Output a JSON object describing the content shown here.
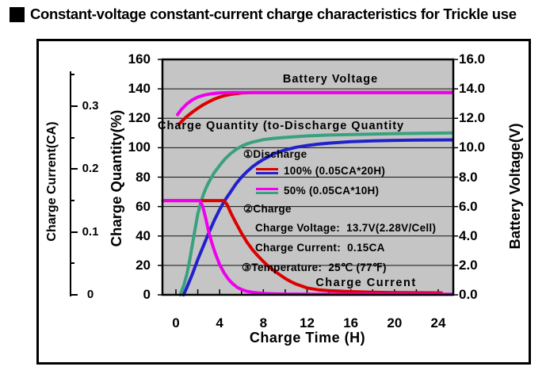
{
  "title": "Constant-voltage constant-current charge characteristics for Trickle use",
  "chart_data": {
    "type": "line",
    "title": "Constant-voltage constant-current charge characteristics for Trickle use",
    "layout": {
      "plot_background": "#c5c5c5",
      "grid": "on",
      "legend_position": "inside-center",
      "frame": "black-box"
    },
    "x_axis": {
      "label": "Charge Time (H)",
      "ticks": [
        "0",
        "4",
        "8",
        "12",
        "16",
        "20",
        "24"
      ],
      "range": [
        0,
        24
      ],
      "minor_tick_step_h": 2
    },
    "y_axis_quantity": {
      "label": "Charge Quantity(%)",
      "ticks": [
        "160",
        "140",
        "120",
        "100",
        "80",
        "60",
        "40",
        "20",
        "0"
      ],
      "range": [
        0,
        160
      ]
    },
    "y_axis_voltage": {
      "label": "Battery Voltage(V)",
      "ticks": [
        "16.0",
        "14.0",
        "12.0",
        "10.0",
        "8.0",
        "6.0",
        "4.0",
        "2.0",
        "0.0"
      ],
      "range": [
        0,
        16
      ]
    },
    "y_axis_current": {
      "label": "Charge Current(CA)",
      "ticks": [
        "0.3",
        "0.2",
        "0.1",
        "0"
      ],
      "tick_values": [
        0.3,
        0.2,
        0.1,
        0
      ],
      "minor_tick_values": [
        0.35,
        0.25,
        0.15,
        0.05
      ],
      "range": [
        0,
        0.35
      ]
    },
    "annotations": {
      "battery_voltage": "Battery Voltage",
      "charge_quantity": "Charge Quantity (to-Discharge Quantity",
      "charge_current": "Charge Current"
    },
    "legend": {
      "discharge_heading": "①Discharge",
      "items": [
        {
          "label": "100% (0.05CA*20H)",
          "colors": [
            "#dd0000",
            "#2121cc"
          ]
        },
        {
          "label": "50% (0.05CA*10H)",
          "colors": [
            "#ee00ee",
            "#3aa17e"
          ]
        }
      ],
      "charge_heading": "②Charge",
      "charge_voltage": "Charge Voltage:  13.7V(2.28V/Cell)",
      "charge_current": "Charge Current:  0.15CA",
      "temperature": "③Temperature:  25℃ (77℉)"
    },
    "series": [
      {
        "id": "battery-voltage-100",
        "name": "Battery Voltage (100% discharge)",
        "axis": "voltage",
        "unit": "V",
        "color": "#dd0000",
        "points": [
          [
            0.3,
            11.62
          ],
          [
            0.75,
            11.95
          ],
          [
            1,
            12.12
          ],
          [
            1.5,
            12.42
          ],
          [
            2,
            12.68
          ],
          [
            2.5,
            12.92
          ],
          [
            3,
            13.12
          ],
          [
            3.5,
            13.3
          ],
          [
            4,
            13.44
          ],
          [
            4.5,
            13.55
          ],
          [
            5,
            13.63
          ],
          [
            5.5,
            13.68
          ],
          [
            6,
            13.72
          ],
          [
            6.5,
            13.74
          ],
          [
            7,
            13.75
          ],
          [
            25.3,
            13.75
          ]
        ]
      },
      {
        "id": "battery-voltage-50",
        "name": "Battery Voltage (50% discharge)",
        "axis": "voltage",
        "unit": "V",
        "color": "#ee00ee",
        "points": [
          [
            0.15,
            12.25
          ],
          [
            0.5,
            12.6
          ],
          [
            1,
            12.98
          ],
          [
            1.5,
            13.25
          ],
          [
            2,
            13.44
          ],
          [
            2.5,
            13.56
          ],
          [
            3,
            13.64
          ],
          [
            3.5,
            13.69
          ],
          [
            4,
            13.72
          ],
          [
            4.5,
            13.74
          ],
          [
            5,
            13.75
          ],
          [
            25.3,
            13.75
          ]
        ]
      },
      {
        "id": "charge-quantity-100",
        "name": "Charge Quantity (100% discharge)",
        "axis": "quantity",
        "unit": "%",
        "color": "#2121cc",
        "points": [
          [
            0.7,
            0
          ],
          [
            1,
            5
          ],
          [
            1.5,
            14
          ],
          [
            2,
            24
          ],
          [
            2.5,
            33
          ],
          [
            3,
            42
          ],
          [
            3.5,
            50.5
          ],
          [
            4,
            58
          ],
          [
            4.5,
            64.5
          ],
          [
            5,
            70
          ],
          [
            5.5,
            75.5
          ],
          [
            6,
            80
          ],
          [
            6.5,
            83.7
          ],
          [
            7,
            87
          ],
          [
            7.5,
            89.7
          ],
          [
            8,
            92
          ],
          [
            9,
            96
          ],
          [
            10,
            98.5
          ],
          [
            11,
            100.3
          ],
          [
            12,
            101.5
          ],
          [
            13,
            102.4
          ],
          [
            14,
            103.1
          ],
          [
            16,
            104.1
          ],
          [
            18,
            104.7
          ],
          [
            20,
            105
          ],
          [
            22,
            105.2
          ],
          [
            25.3,
            105.3
          ]
        ]
      },
      {
        "id": "charge-quantity-50",
        "name": "Charge Quantity (50% discharge)",
        "axis": "quantity",
        "unit": "%",
        "color": "#3aa17e",
        "points": [
          [
            0.4,
            0
          ],
          [
            0.75,
            7
          ],
          [
            1,
            14
          ],
          [
            1.25,
            23
          ],
          [
            1.5,
            34
          ],
          [
            1.75,
            44.5
          ],
          [
            2,
            55
          ],
          [
            2.25,
            62
          ],
          [
            2.5,
            68
          ],
          [
            2.75,
            72.5
          ],
          [
            3,
            76.5
          ],
          [
            3.5,
            83
          ],
          [
            4,
            88
          ],
          [
            4.5,
            92.5
          ],
          [
            5,
            96
          ],
          [
            5.5,
            98.8
          ],
          [
            6,
            101
          ],
          [
            6.5,
            102.6
          ],
          [
            7,
            103.8
          ],
          [
            8,
            105.5
          ],
          [
            9,
            106.4
          ],
          [
            10,
            107
          ],
          [
            12,
            108
          ],
          [
            14,
            108.6
          ],
          [
            16,
            109
          ],
          [
            20,
            109.6
          ],
          [
            25.3,
            110
          ]
        ]
      },
      {
        "id": "charge-current-100",
        "name": "Charge Current (100% discharge)",
        "axis": "current",
        "unit": "CA",
        "color": "#dd0000",
        "points": [
          [
            -1.2,
            0.15
          ],
          [
            4.4,
            0.15
          ],
          [
            4.7,
            0.143
          ],
          [
            5,
            0.131
          ],
          [
            5.5,
            0.114
          ],
          [
            6,
            0.098
          ],
          [
            6.5,
            0.084
          ],
          [
            7,
            0.072
          ],
          [
            7.5,
            0.062
          ],
          [
            8,
            0.053
          ],
          [
            8.5,
            0.045
          ],
          [
            9,
            0.038
          ],
          [
            9.5,
            0.032
          ],
          [
            10,
            0.026
          ],
          [
            10.5,
            0.021
          ],
          [
            11,
            0.017
          ],
          [
            12,
            0.011
          ],
          [
            13,
            0.008
          ],
          [
            14,
            0.0065
          ],
          [
            16,
            0.005
          ],
          [
            18,
            0.004
          ],
          [
            20,
            0.0035
          ],
          [
            24.3,
            0.003
          ]
        ]
      },
      {
        "id": "charge-current-50",
        "name": "Charge Current (50% discharge)",
        "axis": "current",
        "unit": "CA",
        "color": "#ee00ee",
        "points": [
          [
            -1.2,
            0.15
          ],
          [
            2.2,
            0.15
          ],
          [
            2.45,
            0.141
          ],
          [
            2.7,
            0.124
          ],
          [
            3,
            0.1
          ],
          [
            3.3,
            0.082
          ],
          [
            3.6,
            0.066
          ],
          [
            4,
            0.048
          ],
          [
            4.4,
            0.035
          ],
          [
            4.8,
            0.025
          ],
          [
            5.2,
            0.0175
          ],
          [
            5.6,
            0.012
          ],
          [
            6,
            0.0085
          ],
          [
            6.5,
            0.0055
          ],
          [
            7,
            0.004
          ],
          [
            7.5,
            0.003
          ],
          [
            8,
            0.0022
          ],
          [
            9,
            0.0015
          ],
          [
            10,
            0.0012
          ],
          [
            12,
            0.001
          ],
          [
            25.3,
            0.001
          ]
        ]
      }
    ]
  }
}
